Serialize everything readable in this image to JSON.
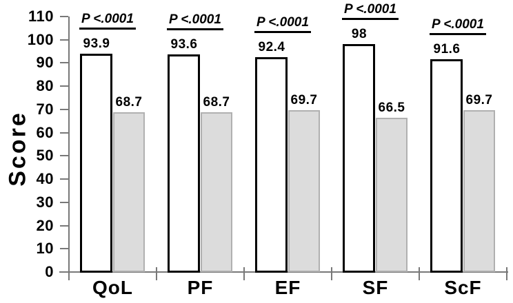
{
  "chart_data": {
    "type": "bar",
    "title": "",
    "xlabel": "",
    "ylabel": "Score",
    "ylim": [
      0,
      110
    ],
    "ytick_step": 10,
    "ytick_labels": [
      "0",
      "10",
      "20",
      "30",
      "40",
      "50",
      "60",
      "70",
      "80",
      "90",
      "100",
      "110"
    ],
    "grid": false,
    "legend": "none",
    "categories": [
      "QoL",
      "PF",
      "EF",
      "SF",
      "ScF"
    ],
    "series": [
      {
        "name": "white-series",
        "values": [
          93.9,
          93.6,
          92.4,
          98,
          91.6
        ],
        "value_labels": [
          "93.9",
          "93.6",
          "92.4",
          "98",
          "91.6"
        ],
        "fill": "#ffffff",
        "border": "#000000"
      },
      {
        "name": "gray-series",
        "values": [
          68.7,
          68.7,
          69.7,
          66.5,
          69.7
        ],
        "value_labels": [
          "68.7",
          "68.7",
          "69.7",
          "66.5",
          "69.7"
        ],
        "fill": "#dcdcdc",
        "border": "#b0b0b0"
      }
    ],
    "significance_labels": [
      "P <.0001",
      "P <.0001",
      "P <.0001",
      "P <.0001",
      "P <.0001"
    ],
    "colors": {
      "axis": "#787878",
      "text": "#000000",
      "background": "#ffffff"
    }
  }
}
